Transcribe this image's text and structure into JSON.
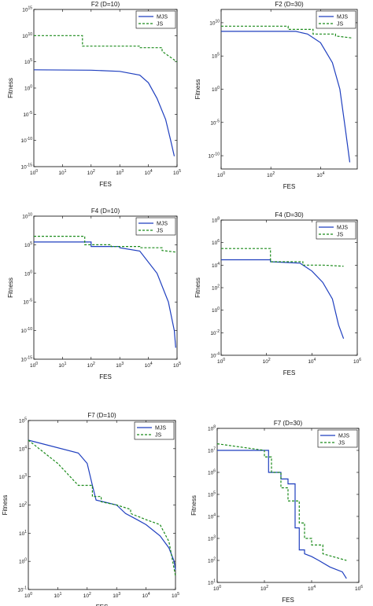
{
  "colors": {
    "MJS": "#1f3fbf",
    "JS": "#1a8a1a"
  },
  "chart_data": [
    {
      "type": "line",
      "title": "F2 (D=10)",
      "xlabel": "FES",
      "ylabel": "Fitness",
      "xscale": "log",
      "yscale": "log",
      "xlim": [
        1,
        100000
      ],
      "ylim": [
        1e-15,
        1000000000000000.0
      ],
      "xticks": [
        1,
        10,
        100,
        1000,
        10000,
        100000
      ],
      "xticklabels": [
        "10^0",
        "10^1",
        "10^2",
        "10^3",
        "10^4",
        "10^5"
      ],
      "yticks": [
        1e-15,
        1e-10,
        1e-05,
        1,
        100000,
        10000000000.0,
        1000000000000000.0
      ],
      "yticklabels": [
        "10^-15",
        "10^-10",
        "10^-5",
        "10^0",
        "10^5",
        "10^10",
        "10^15"
      ],
      "legend": "top-right",
      "series": [
        {
          "name": "MJS",
          "style": "solid",
          "x": [
            1,
            100,
            1000,
            5000,
            10000,
            20000,
            40000,
            60000,
            80000
          ],
          "y": [
            3000,
            2500,
            1500,
            300,
            10,
            0.01,
            1e-06,
            1e-10,
            1e-13
          ]
        },
        {
          "name": "JS",
          "style": "dashed",
          "x": [
            1,
            50,
            50,
            5000,
            5000,
            30000,
            30000,
            100000
          ],
          "y": [
            10000000000.0,
            10000000000.0,
            100000000.0,
            100000000.0,
            50000000.0,
            50000000.0,
            10000000.0,
            100000.0
          ]
        }
      ]
    },
    {
      "type": "line",
      "title": "F2 (D=30)",
      "xlabel": "FES",
      "ylabel": "Fitness",
      "xscale": "log",
      "yscale": "log",
      "xlim": [
        1,
        300000
      ],
      "ylim": [
        1e-12,
        1000000000000.0
      ],
      "xticks": [
        1,
        100,
        10000
      ],
      "xticklabels": [
        "10^0",
        "10^2",
        "10^4"
      ],
      "yticks": [
        1e-10,
        1e-05,
        1,
        100000,
        10000000000.0
      ],
      "yticklabels": [
        "10^-10",
        "10^-5",
        "10^0",
        "10^5",
        "10^10"
      ],
      "legend": "top-right",
      "series": [
        {
          "name": "MJS",
          "style": "solid",
          "x": [
            1,
            1000,
            3000,
            10000,
            30000,
            60000,
            100000,
            150000
          ],
          "y": [
            500000000.0,
            500000000.0,
            200000000.0,
            10000000.0,
            10000,
            1,
            1e-06,
            1e-11
          ]
        },
        {
          "name": "JS",
          "style": "dashed",
          "x": [
            1,
            500,
            500,
            5000,
            5000,
            40000,
            40000,
            200000
          ],
          "y": [
            3000000000.0,
            3000000000.0,
            1000000000.0,
            1000000000.0,
            200000000.0,
            200000000.0,
            100000000.0,
            50000000.0
          ]
        }
      ]
    },
    {
      "type": "line",
      "title": "F4 (D=10)",
      "xlabel": "FES",
      "ylabel": "Fitness",
      "xscale": "log",
      "yscale": "log",
      "xlim": [
        1,
        100000
      ],
      "ylim": [
        1e-15,
        10000000000.0
      ],
      "xticks": [
        1,
        10,
        100,
        1000,
        10000,
        100000
      ],
      "xticklabels": [
        "10^0",
        "10^1",
        "10^2",
        "10^3",
        "10^4",
        "10^5"
      ],
      "yticks": [
        1e-15,
        1e-10,
        1e-05,
        1,
        100000,
        10000000000.0
      ],
      "yticklabels": [
        "10^-15",
        "10^-10",
        "10^-5",
        "10^0",
        "10^5",
        "10^10"
      ],
      "legend": "top-right",
      "series": [
        {
          "name": "MJS",
          "style": "solid",
          "x": [
            1,
            100,
            100,
            1000,
            1000,
            5000,
            20000,
            50000,
            80000,
            90000
          ],
          "y": [
            300000,
            300000,
            50000,
            50000,
            30000,
            8000,
            1,
            1e-05,
            1e-10,
            1e-13
          ]
        },
        {
          "name": "JS",
          "style": "dashed",
          "x": [
            1,
            60,
            60,
            500,
            500,
            5000,
            5000,
            30000,
            30000,
            100000
          ],
          "y": [
            3000000,
            3000000,
            100000,
            100000,
            50000,
            50000,
            30000,
            30000,
            10000,
            5000
          ]
        }
      ]
    },
    {
      "type": "line",
      "title": "F4 (D=30)",
      "xlabel": "FES",
      "ylabel": "Fitness",
      "xscale": "log",
      "yscale": "log",
      "xlim": [
        1,
        1000000
      ],
      "ylim": [
        0.0001,
        100000000
      ],
      "xticks": [
        1,
        100,
        10000,
        1000000
      ],
      "xticklabels": [
        "10^0",
        "10^2",
        "10^4",
        "10^6"
      ],
      "yticks": [
        0.0001,
        0.01,
        1,
        100,
        10000,
        1000000,
        100000000
      ],
      "yticklabels": [
        "10^-4",
        "10^-2",
        "10^0",
        "10^2",
        "10^4",
        "10^6",
        "10^8"
      ],
      "legend": "top-right",
      "series": [
        {
          "name": "MJS",
          "style": "solid",
          "x": [
            1,
            150,
            150,
            3000,
            10000,
            30000,
            80000,
            150000,
            250000
          ],
          "y": [
            30000,
            30000,
            20000,
            15000,
            3000,
            300,
            10,
            0.05,
            0.003
          ]
        },
        {
          "name": "JS",
          "style": "dashed",
          "x": [
            1,
            150,
            150,
            4000,
            4000,
            30000,
            30000,
            250000
          ],
          "y": [
            300000,
            300000,
            20000,
            20000,
            10000,
            10000,
            10000,
            8000
          ]
        }
      ]
    },
    {
      "type": "line",
      "title": "F7 (D=10)",
      "xlabel": "FES",
      "ylabel": "Fitness",
      "xscale": "log",
      "yscale": "log",
      "xlim": [
        1,
        100000
      ],
      "ylim": [
        0.1,
        100000
      ],
      "xticks": [
        1,
        10,
        100,
        1000,
        10000,
        100000
      ],
      "xticklabels": [
        "10^0",
        "10^1",
        "10^2",
        "10^3",
        "10^4",
        "10^5"
      ],
      "yticks": [
        0.1,
        1,
        10,
        100,
        1000,
        10000,
        100000
      ],
      "yticklabels": [
        "10^-1",
        "10^0",
        "10^1",
        "10^2",
        "10^3",
        "10^4",
        "10^5"
      ],
      "legend": "top-right",
      "series": [
        {
          "name": "MJS",
          "style": "solid",
          "x": [
            1,
            50,
            100,
            150,
            200,
            500,
            1000,
            2000,
            5000,
            10000,
            30000,
            60000,
            90000,
            100000
          ],
          "y": [
            20000,
            7000,
            3000,
            500,
            150,
            120,
            100,
            50,
            30,
            20,
            8,
            3,
            1,
            0.5
          ]
        },
        {
          "name": "JS",
          "style": "dashed",
          "x": [
            1,
            10,
            50,
            150,
            150,
            300,
            300,
            1000,
            3000,
            3000,
            10000,
            30000,
            60000,
            100000
          ],
          "y": [
            20000,
            3000,
            500,
            500,
            200,
            200,
            130,
            100,
            70,
            50,
            30,
            20,
            5,
            0.3
          ]
        }
      ]
    },
    {
      "type": "line",
      "title": "F7 (D=30)",
      "xlabel": "FES",
      "ylabel": "Fitness",
      "xscale": "log",
      "yscale": "log",
      "xlim": [
        1,
        1000000
      ],
      "ylim": [
        10,
        100000000
      ],
      "xticks": [
        1,
        100,
        10000,
        1000000
      ],
      "xticklabels": [
        "10^0",
        "10^2",
        "10^4",
        "10^6"
      ],
      "yticks": [
        10,
        100,
        1000,
        10000,
        100000,
        1000000,
        10000000,
        100000000
      ],
      "yticklabels": [
        "10^1",
        "10^2",
        "10^3",
        "10^4",
        "10^5",
        "10^6",
        "10^7",
        "10^8"
      ],
      "legend": "top-right",
      "series": [
        {
          "name": "MJS",
          "style": "solid",
          "x": [
            1,
            150,
            150,
            500,
            500,
            1000,
            1000,
            2000,
            2000,
            3000,
            3000,
            5000,
            5000,
            10000,
            20000,
            60000,
            200000,
            300000
          ],
          "y": [
            10000000,
            10000000,
            1000000,
            1000000,
            500000,
            500000,
            300000,
            300000,
            3000,
            3000,
            300,
            300,
            200,
            150,
            100,
            50,
            30,
            15
          ]
        },
        {
          "name": "JS",
          "style": "dashed",
          "x": [
            1,
            100,
            100,
            200,
            200,
            500,
            500,
            1000,
            1000,
            3000,
            3000,
            5000,
            5000,
            10000,
            10000,
            30000,
            30000,
            300000
          ],
          "y": [
            20000000,
            10000000,
            5000000,
            5000000,
            1000000,
            1000000,
            200000,
            200000,
            50000,
            50000,
            5000,
            5000,
            1000,
            1000,
            500,
            500,
            200,
            100
          ]
        }
      ]
    }
  ]
}
